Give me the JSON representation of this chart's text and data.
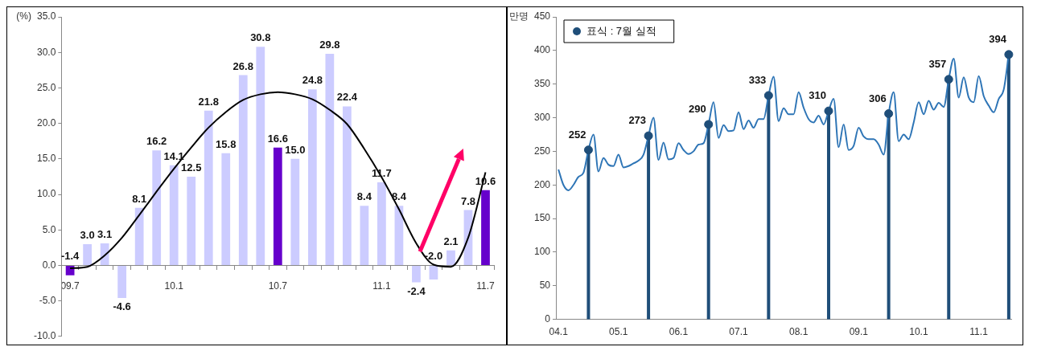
{
  "chart_data": [
    {
      "type": "bar",
      "ylabel": "(%)",
      "categories": [
        "09.7",
        null,
        null,
        null,
        null,
        null,
        "10.1",
        null,
        null,
        null,
        null,
        null,
        "10.7",
        null,
        null,
        null,
        null,
        null,
        "11.1",
        null,
        null,
        null,
        null,
        null,
        "11.7"
      ],
      "ylim": [
        -10,
        35
      ],
      "yticks": [
        {
          "value": -10,
          "label": "-10.0"
        },
        {
          "value": -5,
          "label": "-5.0"
        },
        {
          "value": 0,
          "label": "0.0"
        },
        {
          "value": 5,
          "label": "5.0"
        },
        {
          "value": 10,
          "label": "10.0"
        },
        {
          "value": 15,
          "label": "15.0"
        },
        {
          "value": 20,
          "label": "20.0"
        },
        {
          "value": 25,
          "label": "25.0"
        },
        {
          "value": 30,
          "label": "30.0"
        },
        {
          "value": 35,
          "label": "35.0"
        }
      ],
      "grid": false,
      "series": [
        {
          "values": [
            -1.4,
            3.0,
            3.1,
            -4.6,
            8.1,
            16.2,
            14.1,
            12.5,
            21.8,
            15.8,
            26.8,
            30.8,
            16.6,
            15.0,
            24.8,
            29.8,
            22.4,
            8.4,
            11.7,
            8.4,
            -2.4,
            -2.0,
            2.1,
            7.8,
            10.6
          ],
          "colors": [
            "#6600cc",
            "#ccccff",
            "#ccccff",
            "#ccccff",
            "#ccccff",
            "#ccccff",
            "#ccccff",
            "#ccccff",
            "#ccccff",
            "#ccccff",
            "#ccccff",
            "#ccccff",
            "#6600cc",
            "#ccccff",
            "#ccccff",
            "#ccccff",
            "#ccccff",
            "#ccccff",
            "#ccccff",
            "#ccccff",
            "#ccccff",
            "#ccccff",
            "#ccccff",
            "#ccccff",
            "#6600cc"
          ],
          "value_labels": [
            "-1.4",
            "3.0",
            "3.1",
            "-4.6",
            "8.1",
            "16.2",
            "14.1",
            "12.5",
            "21.8",
            "15.8",
            "26.8",
            "30.8",
            "16.6",
            "15.0",
            "24.8",
            "29.8",
            "22.4",
            "8.4",
            "11.7",
            "8.4",
            "-2.4",
            "-2.0",
            "2.1",
            "7.8",
            "10.6"
          ]
        },
        {
          "type": "line",
          "color": "#000000",
          "values": [
            -0.4,
            -0.2,
            1.4,
            3.9,
            7.1,
            10.4,
            13.6,
            16.6,
            19.4,
            21.6,
            23.3,
            24.1,
            24.4,
            24.1,
            23.4,
            21.9,
            19.9,
            16.4,
            12.4,
            7.9,
            3.1,
            0.1,
            -0.2,
            3.9,
            13.1
          ]
        }
      ]
    },
    {
      "type": "line",
      "ylabel": "만명",
      "categories": [
        "04.1",
        null,
        null,
        null,
        null,
        null,
        null,
        null,
        null,
        null,
        null,
        null,
        "05.1",
        null,
        null,
        null,
        null,
        null,
        null,
        null,
        null,
        null,
        null,
        null,
        "06.1",
        null,
        null,
        null,
        null,
        null,
        null,
        null,
        null,
        null,
        null,
        null,
        "07.1",
        null,
        null,
        null,
        null,
        null,
        null,
        null,
        null,
        null,
        null,
        null,
        "08.1",
        null,
        null,
        null,
        null,
        null,
        null,
        null,
        null,
        null,
        null,
        null,
        "09.1",
        null,
        null,
        null,
        null,
        null,
        null,
        null,
        null,
        null,
        null,
        null,
        "10.1",
        null,
        null,
        null,
        null,
        null,
        null,
        null,
        null,
        null,
        null,
        null,
        "11.1",
        null,
        null,
        null,
        null,
        null,
        null
      ],
      "ylim": [
        0,
        450
      ],
      "yticks": [
        0,
        50,
        100,
        150,
        200,
        250,
        300,
        350,
        400,
        450
      ],
      "grid": false,
      "legend": "top left",
      "series": [
        {
          "color": "#2e75b6",
          "values": [
            223,
            200,
            192,
            200,
            212,
            218,
            252,
            275,
            220,
            240,
            230,
            228,
            245,
            226,
            228,
            232,
            236,
            245,
            273,
            300,
            237,
            263,
            238,
            240,
            262,
            252,
            246,
            250,
            260,
            262,
            290,
            323,
            270,
            289,
            280,
            281,
            308,
            283,
            296,
            285,
            298,
            298,
            333,
            361,
            295,
            314,
            305,
            305,
            338,
            315,
            298,
            293,
            303,
            290,
            310,
            328,
            256,
            290,
            252,
            258,
            285,
            272,
            268,
            268,
            260,
            245,
            306,
            338,
            265,
            275,
            268,
            293,
            323,
            305,
            325,
            312,
            322,
            316,
            357,
            388,
            330,
            360,
            330,
            323,
            362,
            332,
            318,
            308,
            328,
            342,
            394
          ]
        },
        {
          "type": "lollipop",
          "name": "표식 : 7월 실적",
          "color": "#1f4e79",
          "marker": "circle",
          "values": [
            null,
            null,
            null,
            null,
            null,
            null,
            252,
            null,
            null,
            null,
            null,
            null,
            null,
            null,
            null,
            null,
            null,
            null,
            273,
            null,
            null,
            null,
            null,
            null,
            null,
            null,
            null,
            null,
            null,
            null,
            290,
            null,
            null,
            null,
            null,
            null,
            null,
            null,
            null,
            null,
            null,
            null,
            333,
            null,
            null,
            null,
            null,
            null,
            null,
            null,
            null,
            null,
            null,
            null,
            310,
            null,
            null,
            null,
            null,
            null,
            null,
            null,
            null,
            null,
            null,
            null,
            306,
            null,
            null,
            null,
            null,
            null,
            null,
            null,
            null,
            null,
            null,
            null,
            357,
            null,
            null,
            null,
            null,
            null,
            null,
            null,
            null,
            null,
            null,
            null,
            394
          ],
          "value_labels": [
            null,
            null,
            null,
            null,
            null,
            null,
            "252",
            null,
            null,
            null,
            null,
            null,
            null,
            null,
            null,
            null,
            null,
            null,
            "273",
            null,
            null,
            null,
            null,
            null,
            null,
            null,
            null,
            null,
            null,
            null,
            "290",
            null,
            null,
            null,
            null,
            null,
            null,
            null,
            null,
            null,
            null,
            null,
            "333",
            null,
            null,
            null,
            null,
            null,
            null,
            null,
            null,
            null,
            null,
            null,
            "310",
            null,
            null,
            null,
            null,
            null,
            null,
            null,
            null,
            null,
            null,
            null,
            "306",
            null,
            null,
            null,
            null,
            null,
            null,
            null,
            null,
            null,
            null,
            null,
            "357",
            null,
            null,
            null,
            null,
            null,
            null,
            null,
            null,
            null,
            null,
            null,
            "394"
          ]
        }
      ]
    }
  ]
}
